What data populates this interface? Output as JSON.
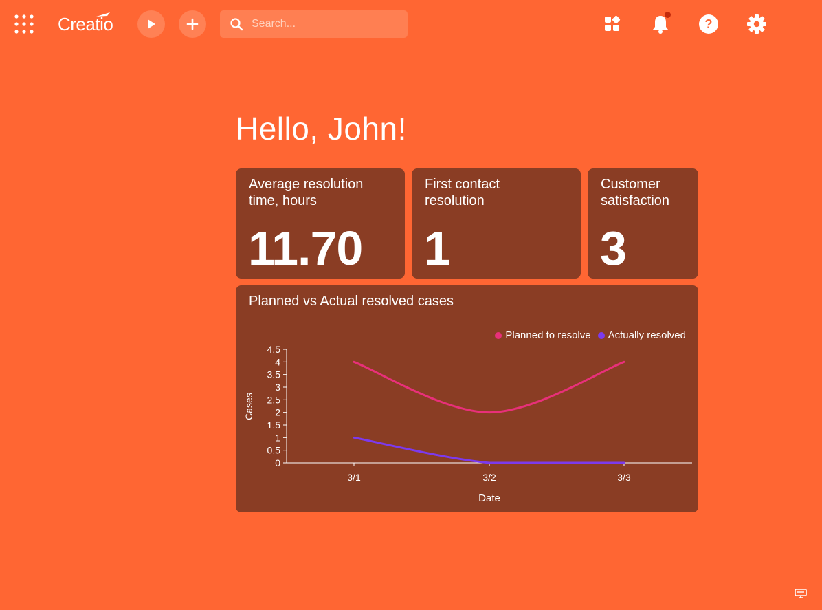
{
  "app": {
    "brand": "Creatio",
    "search_placeholder": "Search..."
  },
  "header": {
    "icons": [
      "apps-grid-icon",
      "run-process-icon",
      "add-icon",
      "search-icon",
      "widgets-icon",
      "bell-icon",
      "help-icon",
      "gear-icon"
    ]
  },
  "greeting": "Hello, John!",
  "kpis": [
    {
      "title": "Average resolution time, hours",
      "value": "11.70"
    },
    {
      "title": "First contact resolution",
      "value": "1"
    },
    {
      "title": "Customer satisfaction",
      "value": "3"
    }
  ],
  "chart_data": {
    "type": "line",
    "title": "Planned vs Actual resolved cases",
    "xlabel": "Date",
    "ylabel": "Cases",
    "categories": [
      "3/1",
      "3/2",
      "3/3"
    ],
    "ylim": [
      0,
      4.5
    ],
    "yticks": [
      "0",
      "0.5",
      "1",
      "1.5",
      "2",
      "2.5",
      "3",
      "3.5",
      "4",
      "4.5"
    ],
    "legend_position": "top-right",
    "series": [
      {
        "name": "Planned to resolve",
        "color": "#e8307a",
        "values": [
          4,
          2,
          4
        ]
      },
      {
        "name": "Actually resolved",
        "color": "#7c3aed",
        "values": [
          1,
          0,
          0
        ]
      }
    ]
  },
  "colors": {
    "background": "#ff6633",
    "card": "#8a3d24"
  }
}
